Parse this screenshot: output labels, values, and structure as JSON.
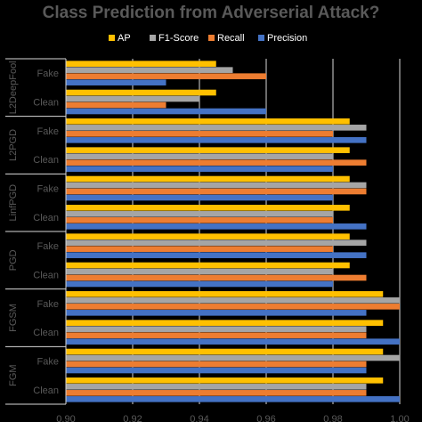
{
  "chart_data": {
    "type": "bar",
    "orientation": "horizontal",
    "title": "Class Prediction from Adverserial Attack?",
    "xlabel": "",
    "ylabel": "",
    "xlim": [
      0.9,
      1.0
    ],
    "x_ticks": [
      "0.90",
      "0.92",
      "0.94",
      "0.96",
      "0.98",
      "1.00"
    ],
    "grid": true,
    "legend_position": "top",
    "series": [
      {
        "name": "AP",
        "color": "#FFC000"
      },
      {
        "name": "F1-Score",
        "color": "#A5A5A5"
      },
      {
        "name": "Recall",
        "color": "#ED7D31"
      },
      {
        "name": "Precision",
        "color": "#4472C4"
      }
    ],
    "groups": [
      {
        "name": "L2DeepFool",
        "rows": [
          {
            "label": "Fake",
            "AP": 0.945,
            "F1-Score": 0.95,
            "Recall": 0.96,
            "Precision": 0.93
          },
          {
            "label": "Clean",
            "AP": 0.945,
            "F1-Score": 0.94,
            "Recall": 0.93,
            "Precision": 0.96
          }
        ]
      },
      {
        "name": "L2PGD",
        "rows": [
          {
            "label": "Fake",
            "AP": 0.985,
            "F1-Score": 0.99,
            "Recall": 0.98,
            "Precision": 0.99
          },
          {
            "label": "Clean",
            "AP": 0.985,
            "F1-Score": 0.98,
            "Recall": 0.99,
            "Precision": 0.98
          }
        ]
      },
      {
        "name": "LinfPGD",
        "rows": [
          {
            "label": "Fake",
            "AP": 0.985,
            "F1-Score": 0.99,
            "Recall": 0.99,
            "Precision": 0.98
          },
          {
            "label": "Clean",
            "AP": 0.985,
            "F1-Score": 0.98,
            "Recall": 0.98,
            "Precision": 0.99
          }
        ]
      },
      {
        "name": "PGD",
        "rows": [
          {
            "label": "Fake",
            "AP": 0.985,
            "F1-Score": 0.99,
            "Recall": 0.98,
            "Precision": 0.99
          },
          {
            "label": "Clean",
            "AP": 0.985,
            "F1-Score": 0.98,
            "Recall": 0.99,
            "Precision": 0.98
          }
        ]
      },
      {
        "name": "FGSM",
        "rows": [
          {
            "label": "Fake",
            "AP": 0.995,
            "F1-Score": 1.0,
            "Recall": 1.0,
            "Precision": 0.99
          },
          {
            "label": "Clean",
            "AP": 0.995,
            "F1-Score": 0.99,
            "Recall": 0.99,
            "Precision": 1.0
          }
        ]
      },
      {
        "name": "FGM",
        "rows": [
          {
            "label": "Fake",
            "AP": 0.995,
            "F1-Score": 1.0,
            "Recall": 0.99,
            "Precision": 0.99
          },
          {
            "label": "Clean",
            "AP": 0.995,
            "F1-Score": 0.99,
            "Recall": 0.99,
            "Precision": 1.0
          }
        ]
      }
    ]
  }
}
